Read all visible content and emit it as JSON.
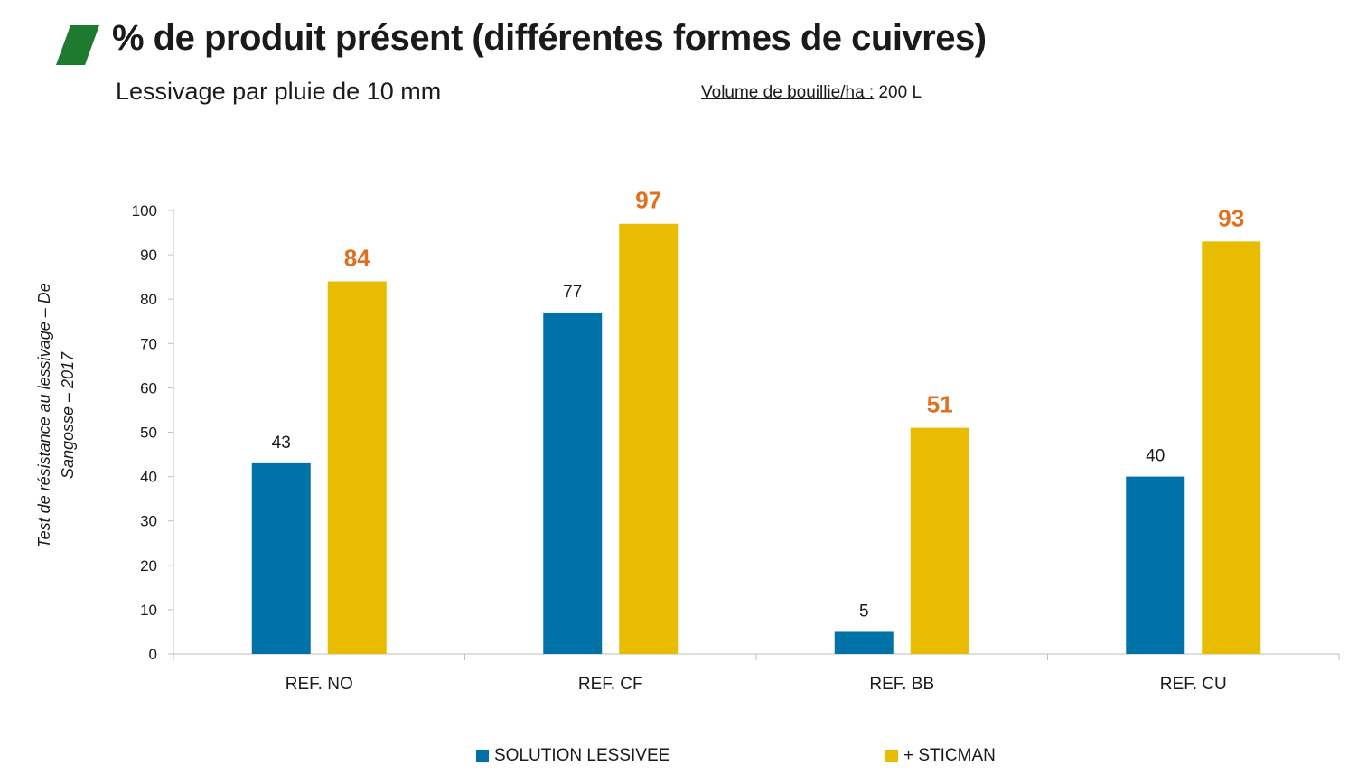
{
  "header": {
    "title": "% de produit présent (différentes formes de cuivres)",
    "subtitle": "Lessivage par pluie de 10 mm",
    "volume_label": "Volume de bouillie/ha :",
    "volume_value": " 200 L"
  },
  "colors": {
    "logo": "#1e7a2e",
    "series_1": "#0072a8",
    "series_2": "#e8bc00",
    "highlight_label": "#e07020",
    "axis": "#bfbfbf"
  },
  "chart_data": {
    "type": "bar",
    "title": "% de produit présent (différentes formes de cuivres)",
    "ylabel": "Test de résistance au lessivage – De Sangosse – 2017",
    "xlabel": "",
    "ylim": [
      0,
      100
    ],
    "yticks": [
      0,
      10,
      20,
      30,
      40,
      50,
      60,
      70,
      80,
      90,
      100
    ],
    "grid": false,
    "legend_position": "bottom",
    "categories": [
      "REF. NO",
      "REF. CF",
      "REF. BB",
      "REF. CU"
    ],
    "series": [
      {
        "name": "SOLUTION LESSIVEE",
        "values": [
          43,
          77,
          5,
          40
        ]
      },
      {
        "name": "+ STICMAN",
        "values": [
          84,
          97,
          51,
          93
        ]
      }
    ]
  }
}
